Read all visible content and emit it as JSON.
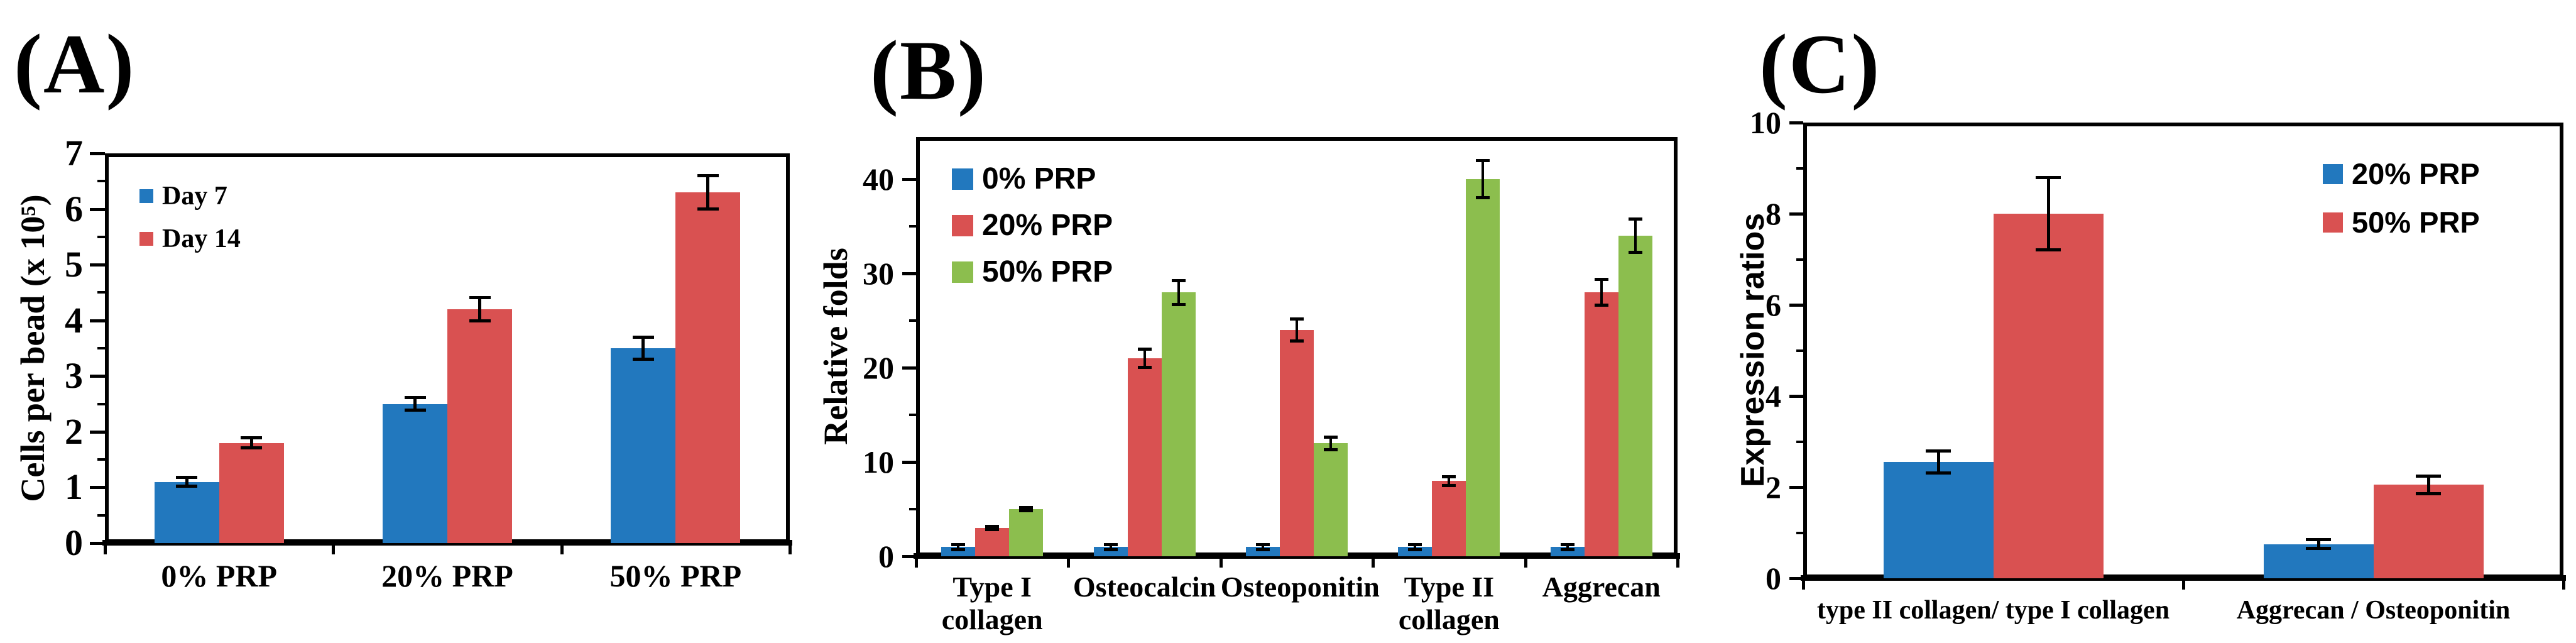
{
  "figure": {
    "background": "#ffffff",
    "panel_labels": [
      "(A)",
      "(B)",
      "(C)"
    ]
  },
  "colors": {
    "blue": "#2278BE",
    "red": "#D95151",
    "green": "#8CBE4E",
    "axis": "#000000"
  },
  "chart_data": [
    {
      "type": "bar",
      "panel_label": "(A)",
      "title": "",
      "xlabel": "",
      "ylabel": "Cells per bead (x 10⁵)",
      "categories": [
        "0% PRP",
        "20% PRP",
        "50% PRP"
      ],
      "series": [
        {
          "name": "Day 7",
          "color": "#2278BE",
          "values": [
            1.1,
            2.5,
            3.5
          ],
          "errors": [
            0.08,
            0.12,
            0.2
          ]
        },
        {
          "name": "Day 14",
          "color": "#D95151",
          "values": [
            1.8,
            4.2,
            6.3
          ],
          "errors": [
            0.1,
            0.21,
            0.31
          ]
        }
      ],
      "ylim": [
        0,
        7
      ],
      "yticks": [
        0,
        1,
        2,
        3,
        4,
        5,
        6,
        7
      ],
      "minor_tick_step": 0.5,
      "legend_position": "top-left",
      "grid": false
    },
    {
      "type": "bar",
      "panel_label": "(B)",
      "title": "",
      "xlabel": "",
      "ylabel": "Relative folds",
      "categories": [
        "Type I\ncollagen",
        "Osteocalcin",
        "Osteoponitin",
        "Type II\ncollagen",
        "Aggrecan"
      ],
      "series": [
        {
          "name": "0% PRP",
          "color": "#2278BE",
          "values": [
            1,
            1,
            1,
            1,
            1
          ],
          "errors": [
            0.3,
            0.3,
            0.3,
            0.3,
            0.3
          ]
        },
        {
          "name": "20% PRP",
          "color": "#D95151",
          "values": [
            3,
            21,
            24,
            8,
            28
          ],
          "errors": [
            0.2,
            1.0,
            1.2,
            0.5,
            1.4
          ]
        },
        {
          "name": "50% PRP",
          "color": "#8CBE4E",
          "values": [
            5,
            28,
            12,
            40,
            34
          ],
          "errors": [
            0.2,
            1.3,
            0.7,
            2.0,
            1.8
          ]
        }
      ],
      "ylim": [
        0,
        44.5
      ],
      "yticks": [
        0,
        10,
        20,
        30,
        40
      ],
      "minor_tick_step": 5,
      "legend_position": "top-left",
      "grid": false
    },
    {
      "type": "bar",
      "panel_label": "(C)",
      "title": "",
      "xlabel": "",
      "ylabel": "Expression ratios",
      "categories": [
        "type II collagen/ type I collagen",
        "Aggrecan / Osteoponitin"
      ],
      "series": [
        {
          "name": "20% PRP",
          "color": "#2278BE",
          "values": [
            2.55,
            0.75
          ],
          "errors": [
            0.25,
            0.1
          ]
        },
        {
          "name": "50% PRP",
          "color": "#D95151",
          "values": [
            8.0,
            2.05
          ],
          "errors": [
            0.8,
            0.2
          ]
        }
      ],
      "ylim": [
        0,
        10
      ],
      "yticks": [
        0,
        2,
        4,
        6,
        8,
        10
      ],
      "minor_tick_step": 1,
      "legend_position": "top-right",
      "grid": false
    }
  ]
}
